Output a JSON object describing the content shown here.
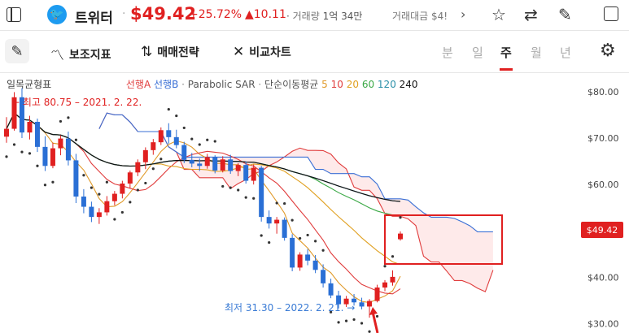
{
  "header": {
    "stock_name": "트위터",
    "price": "$49.42",
    "change_pct": "+25.72%",
    "change_abs": "▲10.11",
    "volume_label": "거래량",
    "volume_value": "1억 34만",
    "trade_value_label": "거래대금 $4!",
    "icons": [
      "sidebar-icon",
      "twitter-logo-icon",
      "chevron-right-icon",
      "star-icon",
      "swap-icon",
      "edit-icon",
      "panel-icon"
    ]
  },
  "toolbar": {
    "indicators_label": "보조지표",
    "strategy_label": "매매전략",
    "compare_label": "비교차트",
    "periods": [
      "분",
      "일",
      "주",
      "월",
      "년"
    ],
    "active_period": "주"
  },
  "legend": {
    "ichimoku": "일목균형표",
    "leading_a": "선행A",
    "leading_b": "선행B",
    "sep": "·",
    "psar": "Parabolic SAR",
    "sma": "단순이동평균",
    "ma_5": "5",
    "ma_10": "10",
    "ma_20": "20",
    "ma_60": "60",
    "ma_120": "120",
    "ma_240": "240",
    "colors": {
      "ma5": "#e09a2a",
      "ma10": "#e03c3c",
      "ma20": "#e0a020",
      "ma60": "#3aa845",
      "ma120": "#2a8fa8",
      "ma240": "#111111"
    }
  },
  "annotations": {
    "high": "← 최고 80.75 – 2021. 2. 22.",
    "low": "최저 31.30 – 2022. 2. 21. →",
    "current_tag": "$49.42"
  },
  "chart_data": {
    "type": "candlestick",
    "yaxis_ticks": [
      "$80.00",
      "$70.00",
      "$60.00",
      "$50.00",
      "$40.00",
      "$30.00"
    ],
    "ylim": [
      28,
      84
    ],
    "high": 80.75,
    "low": 31.3,
    "last": 49.42,
    "candles": [
      [
        70.3,
        74.5,
        69.0,
        72.0
      ],
      [
        72.0,
        79.9,
        71.6,
        78.8
      ],
      [
        78.8,
        80.75,
        70.0,
        71.2
      ],
      [
        71.2,
        74.8,
        69.7,
        73.5
      ],
      [
        73.5,
        74.2,
        67.0,
        68.1
      ],
      [
        68.1,
        70.4,
        62.9,
        64.0
      ],
      [
        64.0,
        69.0,
        63.5,
        67.8
      ],
      [
        67.8,
        70.6,
        66.3,
        69.9
      ],
      [
        69.9,
        71.4,
        64.1,
        65.2
      ],
      [
        65.2,
        66.6,
        56.0,
        57.4
      ],
      [
        57.4,
        59.0,
        53.8,
        55.2
      ],
      [
        55.2,
        56.3,
        51.9,
        53.0
      ],
      [
        53.0,
        54.9,
        51.5,
        54.0
      ],
      [
        54.0,
        57.5,
        53.3,
        56.4
      ],
      [
        56.4,
        58.6,
        55.5,
        58.0
      ],
      [
        58.0,
        60.8,
        57.0,
        60.2
      ],
      [
        60.2,
        63.0,
        59.2,
        62.6
      ],
      [
        62.6,
        65.4,
        61.8,
        64.8
      ],
      [
        64.8,
        68.0,
        63.3,
        67.4
      ],
      [
        67.4,
        69.8,
        66.4,
        69.1
      ],
      [
        69.1,
        72.3,
        68.5,
        71.7
      ],
      [
        71.7,
        73.2,
        68.8,
        70.2
      ],
      [
        70.2,
        71.8,
        67.8,
        68.5
      ],
      [
        68.5,
        69.2,
        64.6,
        65.3
      ],
      [
        65.3,
        66.8,
        63.7,
        64.5
      ],
      [
        64.5,
        65.6,
        62.9,
        64.0
      ],
      [
        64.0,
        66.6,
        63.4,
        65.9
      ],
      [
        65.9,
        66.3,
        62.4,
        63.0
      ],
      [
        63.0,
        66.1,
        62.6,
        65.4
      ],
      [
        65.4,
        66.4,
        62.3,
        62.9
      ],
      [
        62.9,
        64.6,
        61.8,
        64.2
      ],
      [
        64.2,
        65.0,
        60.2,
        60.8
      ],
      [
        60.8,
        64.3,
        60.0,
        63.6
      ],
      [
        63.6,
        64.0,
        52.0,
        53.0
      ],
      [
        53.0,
        54.4,
        50.5,
        51.6
      ],
      [
        51.6,
        53.0,
        49.4,
        52.4
      ],
      [
        52.4,
        52.9,
        47.9,
        48.5
      ],
      [
        48.5,
        49.3,
        41.3,
        42.1
      ],
      [
        42.1,
        45.4,
        41.4,
        44.9
      ],
      [
        44.9,
        46.1,
        42.6,
        43.6
      ],
      [
        43.6,
        44.8,
        40.9,
        41.6
      ],
      [
        41.6,
        42.8,
        37.8,
        38.7
      ],
      [
        38.7,
        39.7,
        35.5,
        36.1
      ],
      [
        36.1,
        37.1,
        33.3,
        34.2
      ],
      [
        34.2,
        36.0,
        33.6,
        35.4
      ],
      [
        35.4,
        36.4,
        33.9,
        34.6
      ],
      [
        34.6,
        35.6,
        33.1,
        33.7
      ],
      [
        33.7,
        35.3,
        31.3,
        34.9
      ],
      [
        34.9,
        38.4,
        34.6,
        37.8
      ],
      [
        37.8,
        39.4,
        37.0,
        38.9
      ],
      [
        38.9,
        41.5,
        38.2,
        40.1
      ],
      [
        48.2,
        49.9,
        47.9,
        49.42
      ]
    ]
  }
}
